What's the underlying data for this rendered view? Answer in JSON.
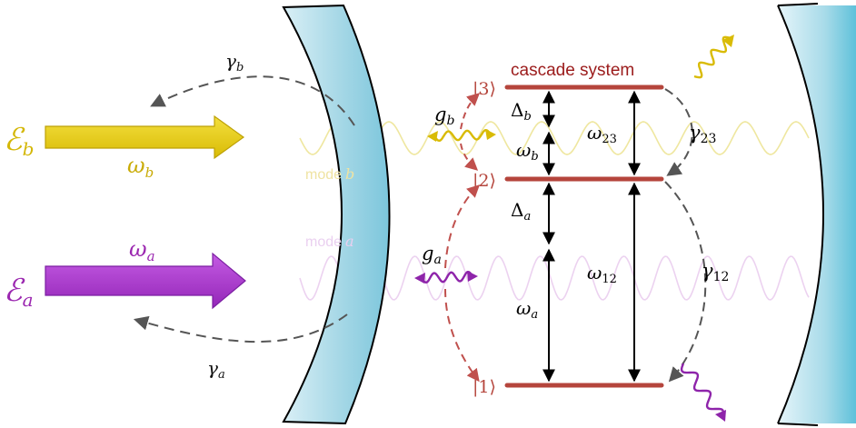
{
  "colors": {
    "yellow": "#e3c60f",
    "yellow_dark": "#b8a000",
    "purple": "#a531c9",
    "purple_dark": "#7b1fa2",
    "level": "#b5453c",
    "red_text": "#9b1b1b",
    "dash_red": "#c0504d",
    "dash_gray": "#555555",
    "mirror_fill": "#9fd3e3",
    "mirror_fill_dark": "#6cc2d9"
  },
  "labels": {
    "field_b": "ℰ",
    "field_b_sub": "b",
    "field_a": "ℰ",
    "field_a_sub": "a",
    "omega_b": "ω",
    "omega_b_sub": "b",
    "omega_a": "ω",
    "omega_a_sub": "a",
    "gamma_b": "γ",
    "gamma_b_sub": "b",
    "gamma_a": "γ",
    "gamma_a_sub": "a",
    "mode_b": "mode",
    "mode_b_var": "b",
    "mode_a": "mode",
    "mode_a_var": "a",
    "cascade": "cascade system",
    "ket3": "|3⟩",
    "ket2": "|2⟩",
    "ket1": "|1⟩",
    "g_b": "g",
    "g_b_sub": "b",
    "g_a": "g",
    "g_a_sub": "a",
    "delta_b": "Δ",
    "delta_b_sub": "b",
    "delta_a": "Δ",
    "delta_a_sub": "a",
    "omega_b_inner": "ω",
    "omega_b_inner_sub": "b",
    "omega_a_inner": "ω",
    "omega_a_inner_sub": "a",
    "omega_23": "ω",
    "omega_23_sub": "23",
    "omega_12": "ω",
    "omega_12_sub": "12",
    "gamma_23": "γ",
    "gamma_23_sub": "23",
    "gamma_12": "γ",
    "gamma_12_sub": "12"
  }
}
